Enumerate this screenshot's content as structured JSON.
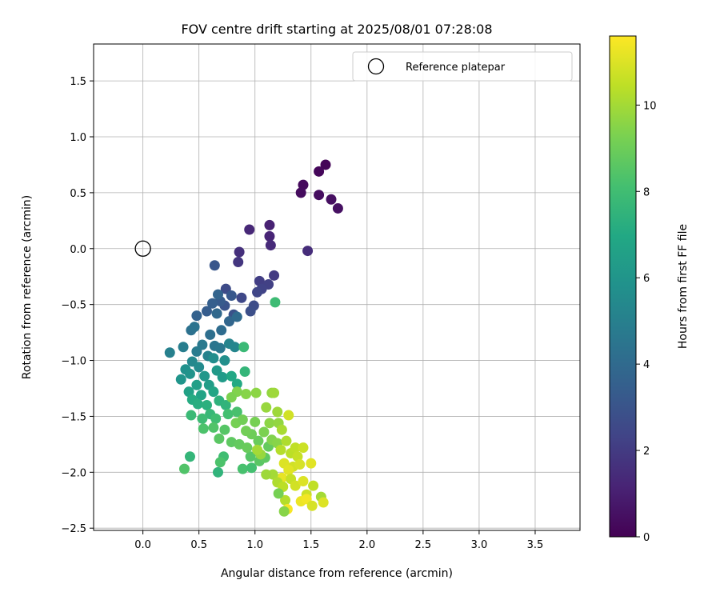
{
  "chart_data": {
    "type": "scatter",
    "title": "FOV centre drift starting at 2025/08/01 07:28:08",
    "xlabel": "Angular distance from reference (arcmin)",
    "ylabel": "Rotation from reference (arcmin)",
    "xlim": [
      -0.44,
      3.9
    ],
    "ylim": [
      -2.52,
      1.83
    ],
    "xticks": [
      0.0,
      0.5,
      1.0,
      1.5,
      2.0,
      2.5,
      3.0,
      3.5
    ],
    "xtick_labels": [
      "0.0",
      "0.5",
      "1.0",
      "1.5",
      "2.0",
      "2.5",
      "3.0",
      "3.5"
    ],
    "yticks": [
      -2.5,
      -2.0,
      -1.5,
      -1.0,
      -0.5,
      0.0,
      0.5,
      1.0,
      1.5
    ],
    "ytick_labels": [
      "−2.5",
      "−2.0",
      "−1.5",
      "−1.0",
      "−0.5",
      "0.0",
      "0.5",
      "1.0",
      "1.5"
    ],
    "grid": true,
    "legend": {
      "placement": "top-right",
      "entries": [
        "Reference platepar"
      ]
    },
    "colormap": "viridis",
    "colorbar": {
      "label": "Hours from first FF file",
      "range": [
        0,
        11.6
      ],
      "ticks": [
        0,
        2,
        4,
        6,
        8,
        10
      ],
      "tick_labels": [
        "0",
        "2",
        "4",
        "6",
        "8",
        "10"
      ]
    },
    "reference_point": {
      "x": 0.0,
      "y": 0.0
    },
    "series": [
      {
        "marker": "filled-circle",
        "note": "color = hours from first FF file",
        "points": [
          [
            1.63,
            0.75,
            0.1
          ],
          [
            1.57,
            0.69,
            0.2
          ],
          [
            1.43,
            0.57,
            0.3
          ],
          [
            1.41,
            0.5,
            0.35
          ],
          [
            1.57,
            0.48,
            0.4
          ],
          [
            1.68,
            0.44,
            0.45
          ],
          [
            1.74,
            0.36,
            0.5
          ],
          [
            1.13,
            0.21,
            1.1
          ],
          [
            1.13,
            0.11,
            1.2
          ],
          [
            0.95,
            0.17,
            1.3
          ],
          [
            1.14,
            0.03,
            1.4
          ],
          [
            1.47,
            -0.02,
            1.5
          ],
          [
            0.86,
            -0.03,
            1.6
          ],
          [
            0.85,
            -0.12,
            1.8
          ],
          [
            1.17,
            -0.24,
            2.0
          ],
          [
            1.04,
            -0.29,
            2.1
          ],
          [
            1.12,
            -0.32,
            2.2
          ],
          [
            1.06,
            -0.36,
            2.3
          ],
          [
            1.02,
            -0.39,
            2.4
          ],
          [
            0.88,
            -0.44,
            2.5
          ],
          [
            0.74,
            -0.36,
            2.6
          ],
          [
            0.99,
            -0.51,
            2.7
          ],
          [
            0.96,
            -0.56,
            2.8
          ],
          [
            0.81,
            -0.59,
            2.9
          ],
          [
            0.73,
            -0.51,
            3.0
          ],
          [
            0.64,
            -0.15,
            3.1
          ],
          [
            0.79,
            -0.42,
            3.2
          ],
          [
            0.69,
            -0.47,
            3.3
          ],
          [
            0.57,
            -0.56,
            3.4
          ],
          [
            0.62,
            -0.49,
            3.5
          ],
          [
            0.48,
            -0.6,
            3.6
          ],
          [
            0.67,
            -0.41,
            3.7
          ],
          [
            0.77,
            -0.65,
            3.8
          ],
          [
            0.66,
            -0.58,
            3.9
          ],
          [
            0.84,
            -0.61,
            4.0
          ],
          [
            0.7,
            -0.73,
            4.1
          ],
          [
            0.6,
            -0.77,
            4.2
          ],
          [
            0.43,
            -0.73,
            4.3
          ],
          [
            0.46,
            -0.7,
            4.4
          ],
          [
            0.64,
            -0.87,
            4.5
          ],
          [
            0.69,
            -0.89,
            4.6
          ],
          [
            0.53,
            -0.86,
            4.7
          ],
          [
            0.48,
            -0.92,
            4.8
          ],
          [
            0.36,
            -0.88,
            4.9
          ],
          [
            0.24,
            -0.93,
            5.0
          ],
          [
            0.58,
            -0.96,
            5.1
          ],
          [
            0.77,
            -0.85,
            5.2
          ],
          [
            0.82,
            -0.88,
            5.3
          ],
          [
            0.44,
            -1.01,
            5.4
          ],
          [
            0.5,
            -1.06,
            5.5
          ],
          [
            0.63,
            -0.98,
            5.6
          ],
          [
            0.73,
            -1.0,
            5.7
          ],
          [
            0.38,
            -1.08,
            5.8
          ],
          [
            0.42,
            -1.12,
            5.9
          ],
          [
            0.34,
            -1.17,
            6.0
          ],
          [
            0.55,
            -1.14,
            6.1
          ],
          [
            0.66,
            -1.09,
            6.2
          ],
          [
            0.71,
            -1.15,
            6.3
          ],
          [
            0.59,
            -1.22,
            6.4
          ],
          [
            0.48,
            -1.22,
            6.5
          ],
          [
            0.41,
            -1.28,
            6.6
          ],
          [
            0.52,
            -1.31,
            6.7
          ],
          [
            0.63,
            -1.28,
            6.8
          ],
          [
            0.79,
            -1.14,
            6.9
          ],
          [
            0.84,
            -1.21,
            7.0
          ],
          [
            0.44,
            -1.35,
            7.1
          ],
          [
            0.49,
            -1.39,
            7.2
          ],
          [
            0.57,
            -1.4,
            7.3
          ],
          [
            0.68,
            -1.36,
            7.4
          ],
          [
            0.74,
            -1.4,
            7.5
          ],
          [
            0.91,
            -1.1,
            7.6
          ],
          [
            0.6,
            -1.48,
            7.7
          ],
          [
            0.43,
            -1.49,
            7.8
          ],
          [
            0.53,
            -1.52,
            7.9
          ],
          [
            0.65,
            -1.52,
            8.0
          ],
          [
            0.76,
            -1.48,
            8.1
          ],
          [
            0.84,
            -1.46,
            8.2
          ],
          [
            0.54,
            -1.61,
            8.3
          ],
          [
            0.63,
            -1.6,
            8.4
          ],
          [
            0.73,
            -1.62,
            8.5
          ],
          [
            0.68,
            -1.7,
            8.6
          ],
          [
            0.79,
            -1.73,
            8.7
          ],
          [
            0.86,
            -1.75,
            8.8
          ],
          [
            0.9,
            -0.88,
            7.8
          ],
          [
            1.18,
            -0.48,
            7.9
          ],
          [
            0.72,
            -1.86,
            8.0
          ],
          [
            0.67,
            -2.0,
            7.5
          ],
          [
            0.42,
            -1.86,
            7.6
          ],
          [
            0.37,
            -1.97,
            8.4
          ],
          [
            0.69,
            -1.91,
            8.3
          ],
          [
            0.89,
            -1.97,
            8.2
          ],
          [
            0.97,
            -1.96,
            8.1
          ],
          [
            0.96,
            -1.86,
            8.5
          ],
          [
            1.04,
            -1.9,
            8.6
          ],
          [
            1.09,
            -1.87,
            8.7
          ],
          [
            1.12,
            -1.77,
            8.8
          ],
          [
            1.03,
            -1.72,
            8.9
          ],
          [
            0.97,
            -1.66,
            9.0
          ],
          [
            0.92,
            -1.63,
            9.1
          ],
          [
            1.0,
            -1.55,
            9.2
          ],
          [
            1.08,
            -1.64,
            9.3
          ],
          [
            1.15,
            -1.71,
            9.4
          ],
          [
            1.2,
            -1.74,
            9.5
          ],
          [
            1.13,
            -1.56,
            9.6
          ],
          [
            1.21,
            -1.56,
            9.7
          ],
          [
            1.1,
            -1.42,
            9.8
          ],
          [
            1.2,
            -1.46,
            9.9
          ],
          [
            1.15,
            -1.29,
            9.7
          ],
          [
            1.17,
            -1.29,
            9.9
          ],
          [
            1.01,
            -1.29,
            9.6
          ],
          [
            0.92,
            -1.3,
            9.5
          ],
          [
            0.84,
            -1.28,
            9.4
          ],
          [
            0.79,
            -1.33,
            9.3
          ],
          [
            0.83,
            -1.56,
            9.2
          ],
          [
            0.89,
            -1.53,
            9.1
          ],
          [
            1.3,
            -1.49,
            10.8
          ],
          [
            1.24,
            -1.62,
            10.1
          ],
          [
            1.28,
            -1.72,
            10.2
          ],
          [
            1.23,
            -1.8,
            10.3
          ],
          [
            1.32,
            -1.83,
            10.4
          ],
          [
            1.36,
            -1.78,
            10.5
          ],
          [
            1.38,
            -1.86,
            10.6
          ],
          [
            1.43,
            -1.78,
            10.7
          ],
          [
            1.34,
            -1.95,
            10.8
          ],
          [
            1.4,
            -1.93,
            10.9
          ],
          [
            1.26,
            -1.92,
            11.0
          ],
          [
            1.3,
            -1.98,
            11.1
          ],
          [
            1.24,
            -2.05,
            11.2
          ],
          [
            1.16,
            -2.02,
            10.0
          ],
          [
            1.1,
            -2.02,
            9.9
          ],
          [
            1.2,
            -2.09,
            10.2
          ],
          [
            1.25,
            -2.13,
            10.4
          ],
          [
            1.32,
            -2.06,
            10.6
          ],
          [
            1.36,
            -2.12,
            10.8
          ],
          [
            1.43,
            -2.08,
            11.0
          ],
          [
            1.5,
            -1.92,
            11.1
          ],
          [
            1.52,
            -2.12,
            10.5
          ],
          [
            1.46,
            -2.2,
            10.7
          ],
          [
            1.41,
            -2.26,
            11.3
          ],
          [
            1.46,
            -2.24,
            11.4
          ],
          [
            1.51,
            -2.3,
            10.9
          ],
          [
            1.59,
            -2.22,
            10.0
          ],
          [
            1.61,
            -2.27,
            11.0
          ],
          [
            1.27,
            -2.25,
            10.3
          ],
          [
            1.29,
            -2.33,
            11.5
          ],
          [
            1.26,
            -2.35,
            9.5
          ],
          [
            1.21,
            -2.19,
            9.2
          ],
          [
            1.05,
            -1.84,
            9.8
          ],
          [
            1.02,
            -1.8,
            10.0
          ],
          [
            0.93,
            -1.78,
            8.9
          ]
        ]
      }
    ]
  }
}
